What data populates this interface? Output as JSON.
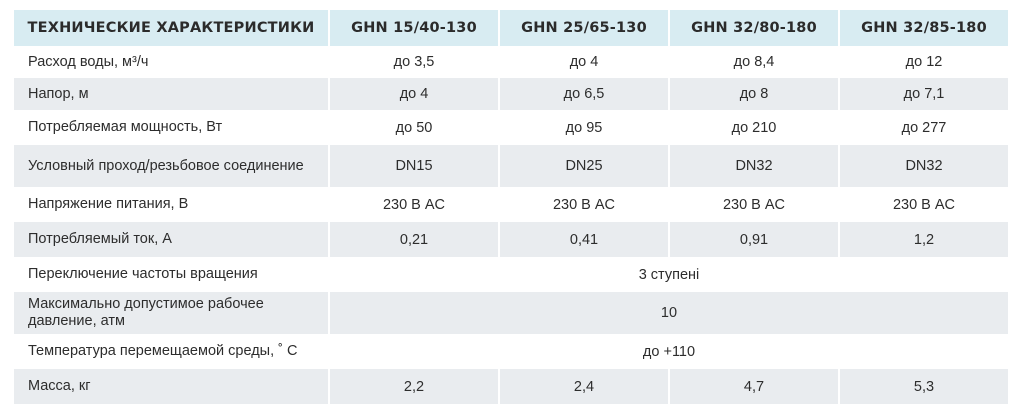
{
  "table": {
    "headers": [
      "ТЕХНИЧЕСКИЕ ХАРАКТЕРИСТИКИ",
      "GHN 15/40-130",
      "GHN 25/65-130",
      "GHN 32/80-180",
      "GHN 32/85-180"
    ],
    "rows": [
      {
        "label": "Расход воды, м³/ч",
        "values": [
          "до 3,5",
          "до 4",
          "до 8,4",
          "до 12"
        ]
      },
      {
        "label": "Напор, м",
        "values": [
          "до 4",
          "до 6,5",
          "до 8",
          "до 7,1"
        ]
      },
      {
        "label": "Потребляемая мощность, Вт",
        "values": [
          "до 50",
          "до 95",
          "до 210",
          "до 277"
        ]
      },
      {
        "label": "Условный проход/резьбовое соединение",
        "values": [
          "DN15",
          "DN25",
          "DN32",
          "DN32"
        ]
      },
      {
        "label": "Напряжение питания, В",
        "values": [
          "230 В AC",
          "230 В AC",
          "230 В AC",
          "230 В AC"
        ]
      },
      {
        "label": "Потребляемый ток, А",
        "values": [
          "0,21",
          "0,41",
          "0,91",
          "1,2"
        ]
      },
      {
        "label": "Переключение частоты вращения",
        "merged": "3 ступені"
      },
      {
        "label": "Максимально допустимое рабочее давление, атм",
        "merged": "10"
      },
      {
        "label": "Температура перемещаемой среды, ˚ С",
        "merged": "до +110"
      },
      {
        "label": "Масса, кг",
        "values": [
          "2,2",
          "2,4",
          "4,7",
          "5,3"
        ]
      }
    ]
  }
}
